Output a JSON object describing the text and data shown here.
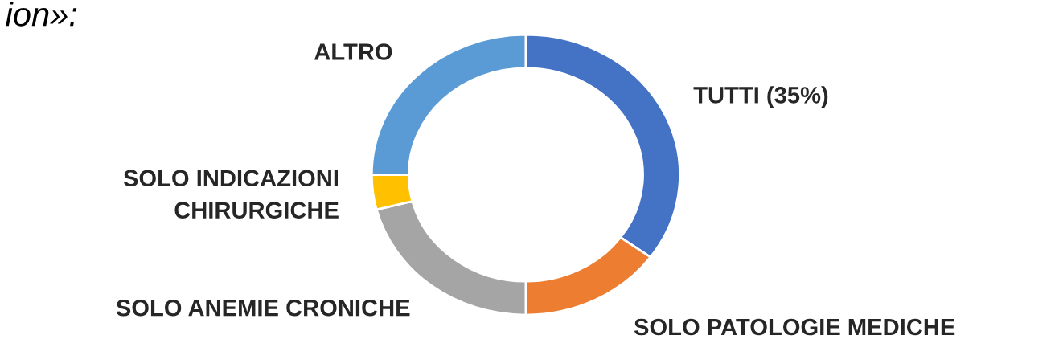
{
  "chart_data": {
    "type": "donut",
    "categories": [
      "TUTTI (35%)",
      "SOLO PATOLOGIE MEDICHE",
      "SOLO ANEMIE CRONICHE",
      "SOLO INDICAZIONI\nCHIRURGICHE",
      "ALTRO"
    ],
    "values": [
      35,
      15,
      21,
      4,
      25
    ],
    "colors": [
      "#4472c4",
      "#ed7d31",
      "#a5a5a5",
      "#ffc000",
      "#5b9bd5"
    ],
    "annotations": [
      "ion»:"
    ],
    "legend": false
  }
}
